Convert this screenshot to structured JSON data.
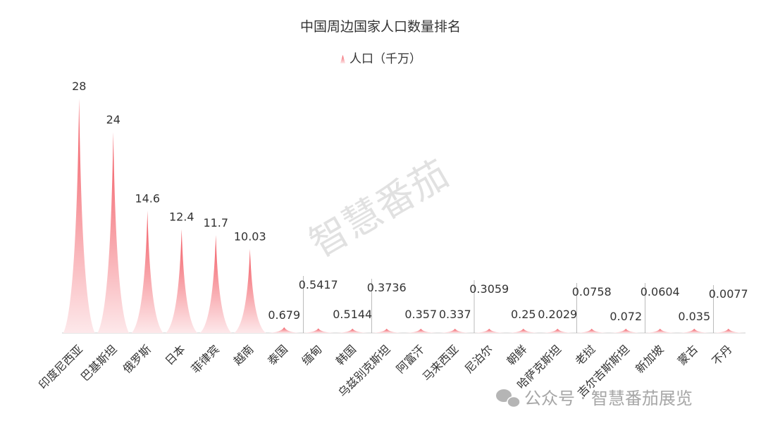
{
  "title": "中国周边国家人口数量排名",
  "watermark": "智慧番茄",
  "footer": {
    "text": "公众号 · 智慧番茄展览",
    "icon": "wechat-icon"
  },
  "colors": {
    "peak_top": "#f2565f",
    "peak_base": "#fde8ea",
    "axis": "#cccccc",
    "leader": "#aaaaaa"
  },
  "chart_data": {
    "type": "bar",
    "title": "中国周边国家人口数量排名",
    "legend": {
      "position": "top-center"
    },
    "series": [
      {
        "name": "人口（千万）",
        "values": [
          28,
          24,
          14.6,
          12.4,
          11.7,
          10.03,
          0.679,
          0.5417,
          0.5144,
          0.3736,
          0.357,
          0.337,
          0.3059,
          0.25,
          0.2029,
          0.0758,
          0.072,
          0.0604,
          0.035,
          0.0077
        ]
      }
    ],
    "value_labels": [
      "28",
      "24",
      "14.6",
      "12.4",
      "11.7",
      "10.03",
      "0.679",
      "0.5417",
      "0.5144",
      "0.3736",
      "0.357",
      "0.337",
      "0.3059",
      "0.25",
      "0.2029",
      "0.0758",
      "0.072",
      "0.0604",
      "0.035",
      "0.0077"
    ],
    "categories": [
      "印度尼西亚",
      "巴基斯坦",
      "俄罗斯",
      "日本",
      "菲律宾",
      "越南",
      "泰国",
      "缅甸",
      "韩国",
      "乌兹别克斯坦",
      "阿富汗",
      "马来西亚",
      "尼泊尔",
      "朝鲜",
      "哈萨克斯坦",
      "老挝",
      "吉尔吉斯斯坦",
      "新加坡",
      "蒙古",
      "不丹"
    ],
    "ylim": [
      0,
      28
    ],
    "grid": false
  }
}
